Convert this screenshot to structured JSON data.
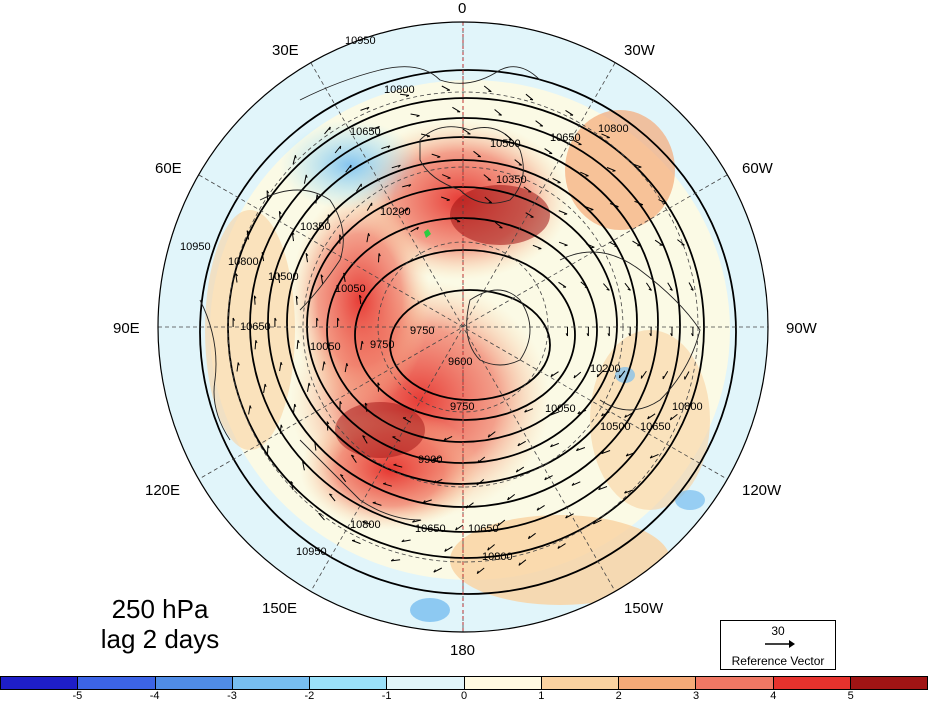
{
  "longitude_labels": [
    "0",
    "30W",
    "60W",
    "90W",
    "120W",
    "150W",
    "180",
    "150E",
    "120E",
    "90E",
    "60E",
    "30E"
  ],
  "caption": {
    "level": "250 hPa",
    "lag": "lag 2 days"
  },
  "reference_vector": {
    "magnitude": "30",
    "label": "Reference Vector"
  },
  "colorbar": {
    "colors": [
      "#1e1ec8",
      "#3c64e6",
      "#508ce6",
      "#78bef0",
      "#9be1fa",
      "#e1f5fa",
      "#fffae1",
      "#fad2a0",
      "#f5aa78",
      "#f07864",
      "#e6322d",
      "#a01414"
    ],
    "ticks": [
      "-5",
      "-4",
      "-3",
      "-2",
      "-1",
      "0",
      "1",
      "2",
      "3",
      "4",
      "5"
    ]
  },
  "contour_labels": [
    "10950",
    "10800",
    "10650",
    "10500",
    "10350",
    "10200",
    "10050",
    "9900",
    "9750",
    "9600"
  ],
  "marker_color": "#2ecc40"
}
